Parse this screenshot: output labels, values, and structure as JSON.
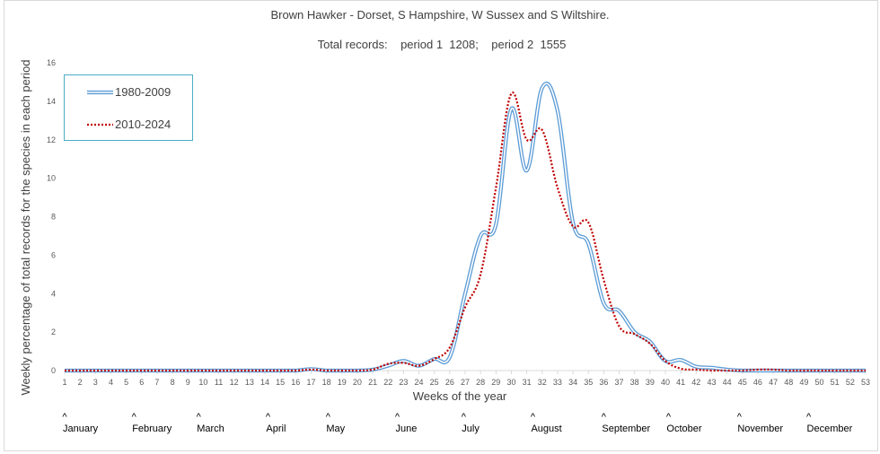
{
  "chart_data": {
    "type": "line",
    "title": "Brown Hawker - Dorset, S Hampshire, W Sussex and S Wiltshire.",
    "subtitle": "Total records:    period 1  1208;    period 2  1555",
    "xlabel": "Weeks of the year",
    "ylabel": "Weekly percentage of total records for the species in each period",
    "ylim": [
      0,
      16
    ],
    "yticks": [
      0,
      2,
      4,
      6,
      8,
      10,
      12,
      14,
      16
    ],
    "x": [
      1,
      2,
      3,
      4,
      5,
      6,
      7,
      8,
      9,
      10,
      11,
      12,
      13,
      14,
      15,
      16,
      17,
      18,
      19,
      20,
      21,
      22,
      23,
      24,
      25,
      26,
      27,
      28,
      29,
      30,
      31,
      32,
      33,
      34,
      35,
      36,
      37,
      38,
      39,
      40,
      41,
      42,
      43,
      44,
      45,
      46,
      47,
      48,
      49,
      50,
      51,
      52,
      53
    ],
    "grid": false,
    "legend_position": "top-left",
    "series": [
      {
        "name": "1980-2009",
        "color": "#5b9bd5",
        "style": "double",
        "values": [
          0,
          0,
          0,
          0,
          0,
          0,
          0,
          0,
          0,
          0,
          0,
          0,
          0,
          0,
          0,
          0,
          0.08,
          0,
          0,
          0,
          0.05,
          0.25,
          0.5,
          0.25,
          0.6,
          0.7,
          4.0,
          7.0,
          7.6,
          13.6,
          10.4,
          14.7,
          13.5,
          7.7,
          6.6,
          3.5,
          3.1,
          2.0,
          1.5,
          0.5,
          0.55,
          0.2,
          0.15,
          0.05,
          0,
          0,
          0,
          0,
          0,
          0,
          0,
          0,
          0
        ]
      },
      {
        "name": "2010-2024",
        "color": "#c00000",
        "style": "dotted",
        "values": [
          0,
          0,
          0,
          0,
          0,
          0,
          0,
          0,
          0,
          0,
          0,
          0,
          0,
          0,
          0,
          0,
          0.05,
          0,
          0,
          0,
          0.05,
          0.35,
          0.4,
          0.25,
          0.6,
          1.2,
          3.3,
          5.0,
          9.5,
          14.4,
          12.0,
          12.5,
          9.5,
          7.5,
          7.7,
          4.7,
          2.3,
          1.9,
          1.4,
          0.5,
          0.1,
          0.05,
          0,
          0,
          0,
          0.05,
          0.05,
          0,
          0,
          0,
          0,
          0,
          0
        ]
      }
    ],
    "months": [
      {
        "label": "January",
        "week": 1
      },
      {
        "label": "February",
        "week": 5.5
      },
      {
        "label": "March",
        "week": 9.7
      },
      {
        "label": "April",
        "week": 14.2
      },
      {
        "label": "May",
        "week": 18.1
      },
      {
        "label": "June",
        "week": 22.6
      },
      {
        "label": "July",
        "week": 26.9
      },
      {
        "label": "August",
        "week": 31.4
      },
      {
        "label": "September",
        "week": 36
      },
      {
        "label": "October",
        "week": 40.2
      },
      {
        "label": "November",
        "week": 44.8
      },
      {
        "label": "December",
        "week": 49.3
      }
    ],
    "month_marker": "^"
  }
}
